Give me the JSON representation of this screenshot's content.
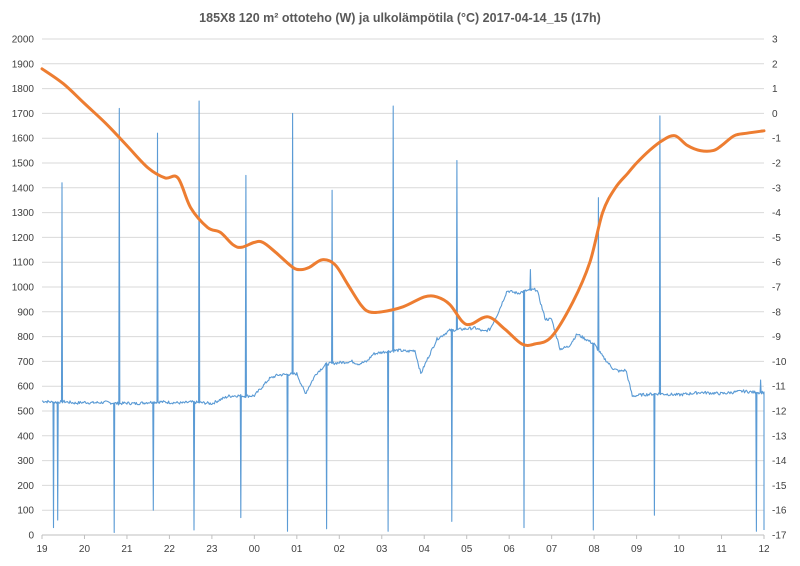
{
  "chart_data": {
    "type": "line",
    "title": "185X8 120 m² ottoteho (W) ja ulkolämpötila (°C) 2017-04-14_15 (17h)",
    "xlabel": "",
    "ylabel": "",
    "x_unit": "hour of day (19:00 on 2017-04-14 to 12:00 on 2017-04-15)",
    "categories": [
      "19",
      "20",
      "21",
      "22",
      "23",
      "00",
      "01",
      "02",
      "03",
      "04",
      "05",
      "06",
      "07",
      "08",
      "09",
      "10",
      "11",
      "12"
    ],
    "ylim": [
      0,
      2000
    ],
    "y_ticks": [
      0,
      100,
      200,
      300,
      400,
      500,
      600,
      700,
      800,
      900,
      1000,
      1100,
      1200,
      1300,
      1400,
      1500,
      1600,
      1700,
      1800,
      1900,
      2000
    ],
    "y2lim": [
      -17,
      3
    ],
    "y2_ticks": [
      -17,
      -16,
      -15,
      -14,
      -13,
      -12,
      -11,
      -10,
      -9,
      -8,
      -7,
      -6,
      -5,
      -4,
      -3,
      -2,
      -1,
      0,
      1,
      2,
      3
    ],
    "grid": "horizontal",
    "legend": "none",
    "colors": {
      "power": "#5B9BD5",
      "temperature": "#ED7D31"
    },
    "series": [
      {
        "axis": "left",
        "color": "#5B9BD5",
        "baseline": [
          [
            0,
            540
          ],
          [
            0.3,
            535
          ],
          [
            0.5,
            538
          ],
          [
            0.8,
            532
          ],
          [
            1.0,
            535
          ],
          [
            1.2,
            533
          ],
          [
            1.5,
            535
          ],
          [
            1.8,
            530
          ],
          [
            2.0,
            532
          ],
          [
            2.2,
            530
          ],
          [
            2.5,
            535
          ],
          [
            2.8,
            537
          ],
          [
            3.0,
            535
          ],
          [
            3.3,
            532
          ],
          [
            3.5,
            536
          ],
          [
            3.8,
            533
          ],
          [
            4.0,
            530
          ],
          [
            4.25,
            550
          ],
          [
            4.4,
            560
          ],
          [
            4.6,
            562
          ],
          [
            4.8,
            560
          ],
          [
            5.0,
            562
          ],
          [
            5.2,
            600
          ],
          [
            5.35,
            630
          ],
          [
            5.55,
            645
          ],
          [
            5.8,
            648
          ],
          [
            6.0,
            650
          ],
          [
            6.2,
            570
          ],
          [
            6.45,
            650
          ],
          [
            6.7,
            690
          ],
          [
            7.0,
            695
          ],
          [
            7.3,
            700
          ],
          [
            7.45,
            690
          ],
          [
            7.65,
            700
          ],
          [
            7.8,
            730
          ],
          [
            8.1,
            740
          ],
          [
            8.4,
            745
          ],
          [
            8.6,
            740
          ],
          [
            8.78,
            745
          ],
          [
            8.92,
            650
          ],
          [
            9.05,
            700
          ],
          [
            9.3,
            790
          ],
          [
            9.6,
            825
          ],
          [
            9.9,
            830
          ],
          [
            10.2,
            835
          ],
          [
            10.4,
            820
          ],
          [
            10.55,
            830
          ],
          [
            10.75,
            900
          ],
          [
            10.95,
            985
          ],
          [
            11.2,
            975
          ],
          [
            11.4,
            985
          ],
          [
            11.65,
            990
          ],
          [
            11.85,
            870
          ],
          [
            12.0,
            870
          ],
          [
            12.2,
            750
          ],
          [
            12.4,
            760
          ],
          [
            12.6,
            810
          ],
          [
            12.8,
            790
          ],
          [
            13.0,
            770
          ],
          [
            13.2,
            720
          ],
          [
            13.45,
            670
          ],
          [
            13.6,
            660
          ],
          [
            13.75,
            665
          ],
          [
            13.9,
            560
          ],
          [
            14.1,
            565
          ],
          [
            14.5,
            570
          ],
          [
            15.0,
            565
          ],
          [
            15.5,
            575
          ],
          [
            16.0,
            570
          ],
          [
            16.5,
            580
          ],
          [
            16.8,
            575
          ]
        ],
        "spikes": [
          {
            "t": 0.27,
            "min": 30
          },
          {
            "t": 0.37,
            "min": 60
          },
          {
            "t": 0.47,
            "max": 1420
          },
          {
            "t": 1.7,
            "min": 10
          },
          {
            "t": 1.82,
            "max": 1720
          },
          {
            "t": 2.62,
            "min": 100
          },
          {
            "t": 2.72,
            "max": 1620
          },
          {
            "t": 3.58,
            "min": 20
          },
          {
            "t": 3.7,
            "max": 1750
          },
          {
            "t": 4.68,
            "min": 70
          },
          {
            "t": 4.8,
            "max": 1450
          },
          {
            "t": 5.78,
            "min": 15
          },
          {
            "t": 5.9,
            "max": 1700
          },
          {
            "t": 6.7,
            "min": 25
          },
          {
            "t": 6.83,
            "max": 1390
          },
          {
            "t": 8.15,
            "min": 15
          },
          {
            "t": 8.27,
            "max": 1730
          },
          {
            "t": 9.65,
            "min": 55
          },
          {
            "t": 9.77,
            "max": 1510
          },
          {
            "t": 11.35,
            "min": 30
          },
          {
            "t": 11.5,
            "max": 1070
          },
          {
            "t": 12.98,
            "min": 20
          },
          {
            "t": 13.1,
            "max": 1360
          },
          {
            "t": 14.42,
            "min": 80
          },
          {
            "t": 14.55,
            "max": 1690
          },
          {
            "t": 16.82,
            "min": 15
          },
          {
            "t": 16.92,
            "max": 625
          },
          {
            "t": 17.0,
            "min": 20
          }
        ]
      },
      {
        "axis": "right",
        "color": "#ED7D31",
        "values": [
          [
            0,
            1.8
          ],
          [
            0.5,
            1.2
          ],
          [
            1.0,
            0.4
          ],
          [
            1.5,
            -0.4
          ],
          [
            2.0,
            -1.3
          ],
          [
            2.5,
            -2.2
          ],
          [
            2.9,
            -2.6
          ],
          [
            3.2,
            -2.6
          ],
          [
            3.5,
            -3.8
          ],
          [
            3.9,
            -4.6
          ],
          [
            4.2,
            -4.8
          ],
          [
            4.5,
            -5.3
          ],
          [
            4.7,
            -5.4
          ],
          [
            5.0,
            -5.2
          ],
          [
            5.2,
            -5.2
          ],
          [
            5.5,
            -5.6
          ],
          [
            5.9,
            -6.2
          ],
          [
            6.1,
            -6.3
          ],
          [
            6.3,
            -6.2
          ],
          [
            6.6,
            -5.9
          ],
          [
            6.9,
            -6.1
          ],
          [
            7.2,
            -6.9
          ],
          [
            7.5,
            -7.7
          ],
          [
            7.7,
            -8.0
          ],
          [
            8.0,
            -8.0
          ],
          [
            8.5,
            -7.8
          ],
          [
            9.0,
            -7.4
          ],
          [
            9.3,
            -7.4
          ],
          [
            9.6,
            -7.7
          ],
          [
            9.9,
            -8.4
          ],
          [
            10.1,
            -8.5
          ],
          [
            10.5,
            -8.2
          ],
          [
            10.9,
            -8.7
          ],
          [
            11.3,
            -9.3
          ],
          [
            11.6,
            -9.3
          ],
          [
            12.0,
            -9.0
          ],
          [
            12.5,
            -7.6
          ],
          [
            12.9,
            -6.0
          ],
          [
            13.2,
            -4.0
          ],
          [
            13.5,
            -3.0
          ],
          [
            13.8,
            -2.4
          ],
          [
            14.0,
            -2.0
          ],
          [
            14.3,
            -1.5
          ],
          [
            14.6,
            -1.1
          ],
          [
            14.9,
            -0.9
          ],
          [
            15.2,
            -1.3
          ],
          [
            15.5,
            -1.5
          ],
          [
            15.8,
            -1.5
          ],
          [
            16.0,
            -1.3
          ],
          [
            16.3,
            -0.9
          ],
          [
            16.6,
            -0.8
          ],
          [
            17.0,
            -0.7
          ]
        ]
      }
    ]
  }
}
